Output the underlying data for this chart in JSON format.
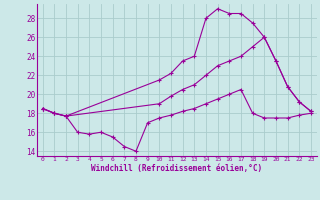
{
  "xlabel": "Windchill (Refroidissement éolien,°C)",
  "background_color": "#cce8e8",
  "grid_color": "#aacccc",
  "line_color": "#990099",
  "xlim": [
    -0.5,
    23.5
  ],
  "ylim": [
    13.5,
    29.5
  ],
  "yticks": [
    14,
    16,
    18,
    20,
    22,
    24,
    26,
    28
  ],
  "xticks": [
    0,
    1,
    2,
    3,
    4,
    5,
    6,
    7,
    8,
    9,
    10,
    11,
    12,
    13,
    14,
    15,
    16,
    17,
    18,
    19,
    20,
    21,
    22,
    23
  ],
  "series": [
    {
      "x": [
        0,
        1,
        2,
        10,
        11,
        12,
        13,
        14,
        15,
        16,
        17,
        18,
        19,
        20,
        21,
        22,
        23
      ],
      "y": [
        18.5,
        18.0,
        17.7,
        21.5,
        22.2,
        23.5,
        24.0,
        28.0,
        29.0,
        28.5,
        28.5,
        27.5,
        26.0,
        23.5,
        20.8,
        19.2,
        18.2
      ]
    },
    {
      "x": [
        0,
        1,
        2,
        3,
        4,
        5,
        6,
        7,
        8,
        9,
        10,
        11,
        12,
        13,
        14,
        15,
        16,
        17,
        18,
        19,
        20,
        21,
        22,
        23
      ],
      "y": [
        18.5,
        18.0,
        17.7,
        16.0,
        15.8,
        16.0,
        15.5,
        14.5,
        14.0,
        17.0,
        17.5,
        17.8,
        18.2,
        18.5,
        19.0,
        19.5,
        20.0,
        20.5,
        18.0,
        17.5,
        17.5,
        17.5,
        17.8,
        18.0
      ]
    },
    {
      "x": [
        0,
        1,
        2,
        10,
        11,
        12,
        13,
        14,
        15,
        16,
        17,
        18,
        19,
        20,
        21,
        22,
        23
      ],
      "y": [
        18.5,
        18.0,
        17.7,
        19.0,
        19.8,
        20.5,
        21.0,
        22.0,
        23.0,
        23.5,
        24.0,
        25.0,
        26.0,
        23.5,
        20.8,
        19.2,
        18.2
      ]
    }
  ]
}
